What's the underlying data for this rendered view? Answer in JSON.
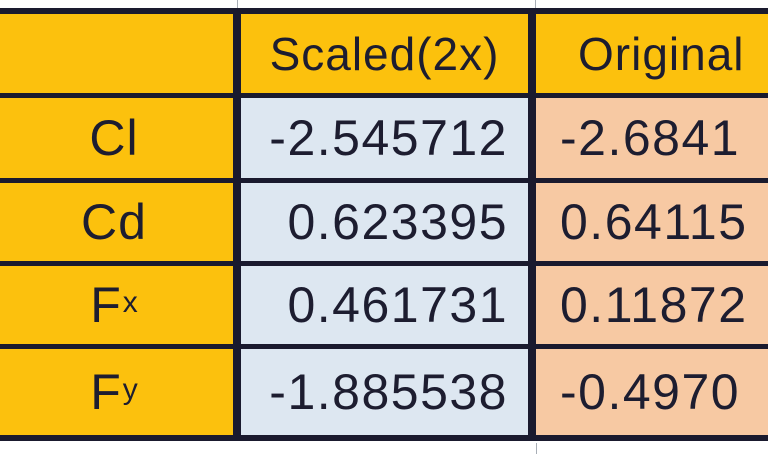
{
  "colors": {
    "header_and_label_bg": "#fcc10d",
    "scaled_column_bg": "#dde7f1",
    "original_column_bg": "#f7c9a3",
    "border": "#1a1a2e",
    "text": "#1d1d30",
    "page_bg": "#ffffff"
  },
  "table": {
    "header": {
      "corner": "",
      "scaled": "Scaled(2x)",
      "original": "Original"
    },
    "rows": [
      {
        "label_base": "Cl",
        "label_sub": "",
        "scaled": "-2.545712",
        "original": "-2.6841"
      },
      {
        "label_base": "Cd",
        "label_sub": "",
        "scaled": "0.623395",
        "original": "0.64115"
      },
      {
        "label_base": "F",
        "label_sub": "x",
        "scaled": "0.461731",
        "original": "0.11872"
      },
      {
        "label_base": "F",
        "label_sub": "y",
        "scaled": "-1.885538",
        "original": "-0.4970"
      }
    ]
  },
  "chart_data": {
    "type": "table",
    "columns": [
      "",
      "Scaled(2x)",
      "Original"
    ],
    "row_labels": [
      "Cl",
      "Cd",
      "Fx",
      "Fy"
    ],
    "series": [
      {
        "name": "Scaled(2x)",
        "values": [
          -2.545712,
          0.623395,
          0.461731,
          -1.885538
        ]
      },
      {
        "name": "Original",
        "values": [
          -2.6841,
          0.64115,
          0.11872,
          -0.497
        ],
        "truncated_at_right_edge": true
      }
    ],
    "layout": "comparison table, row labels are aerodynamic coefficients; right column clipped by screenshot edge"
  }
}
